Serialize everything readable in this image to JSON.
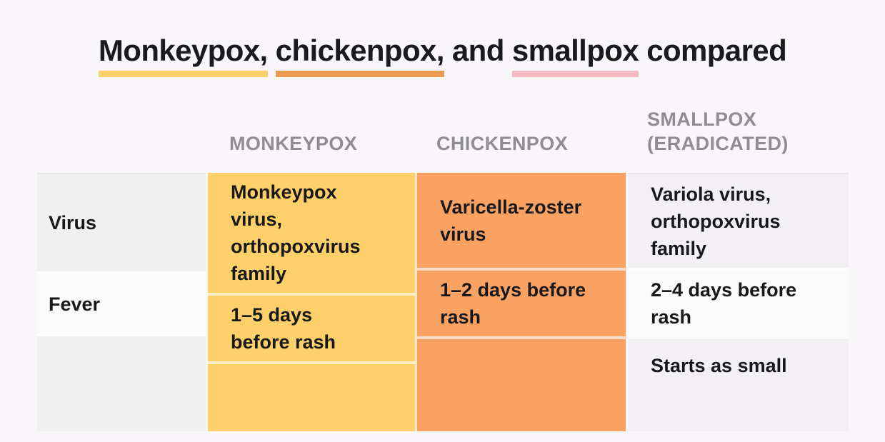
{
  "colors": {
    "page_bg": "#f8f6f8",
    "title_text": "#1b1a1c",
    "header_text": "#8f8d91",
    "cell_text": "#19181a",
    "monkeypox_column": "#fdd069",
    "chickenpox_column": "#faa262",
    "label_cell_gray": "#f1f0f1",
    "smallpox_cell_gray": "#f2f0f3",
    "light_cell_white": "#fafafa",
    "underline_yellow": "#fbd068",
    "underline_orange": "#ed9a51",
    "underline_pink": "#f6b9bf"
  },
  "title": {
    "segments": [
      {
        "text": "Monkeypox,",
        "underline_color": "#fbd068"
      },
      {
        "text": " ",
        "underline_color": null
      },
      {
        "text": "chickenpox,",
        "underline_color": "#ed9a51"
      },
      {
        "text": " and ",
        "underline_color": null
      },
      {
        "text": "smallpox",
        "underline_color": "#f6b9bf"
      },
      {
        "text": " compared",
        "underline_color": null
      }
    ]
  },
  "table": {
    "columns": [
      {
        "key": "monkeypox",
        "label": "MONKEYPOX",
        "color": "#fdd069"
      },
      {
        "key": "chickenpox",
        "label": "CHICKENPOX",
        "color": "#faa262"
      },
      {
        "key": "smallpox",
        "label": "SMALLPOX\n(ERADICATED)",
        "color": "#f2f0f3"
      }
    ],
    "rows": [
      {
        "label": "Virus",
        "monkeypox": "Monkeypox\nvirus,\northopoxvirus\nfamily",
        "chickenpox": "Varicella-zoster\nvirus",
        "smallpox": "Variola virus,\northopoxvirus\nfamily"
      },
      {
        "label": "Fever",
        "monkeypox": "1–5 days\nbefore rash",
        "chickenpox": "1–2 days before\nrash",
        "smallpox": "2–4 days before\nrash"
      },
      {
        "label": "",
        "monkeypox": "",
        "chickenpox": "",
        "smallpox": "Starts as small"
      }
    ]
  },
  "chart_data": {
    "type": "table",
    "title": "Monkeypox, chickenpox, and smallpox compared",
    "columns": [
      "",
      "MONKEYPOX",
      "CHICKENPOX",
      "SMALLPOX (ERADICATED)"
    ],
    "rows": [
      [
        "Virus",
        "Monkeypox virus, orthopoxvirus family",
        "Varicella-zoster virus",
        "Variola virus, orthopoxvirus family"
      ],
      [
        "Fever",
        "1–5 days before rash",
        "1–2 days before rash",
        "2–4 days before rash"
      ],
      [
        "",
        "",
        "",
        "Starts as small"
      ]
    ],
    "layout_hints": {
      "column_accent_colors": [
        "#fdd069",
        "#faa262",
        "#f2f0f3"
      ],
      "title_underline_colors": [
        "#fbd068",
        "#ed9a51",
        "#f6b9bf"
      ],
      "grid": "off",
      "last_row_clipped_at_bottom": true
    }
  }
}
